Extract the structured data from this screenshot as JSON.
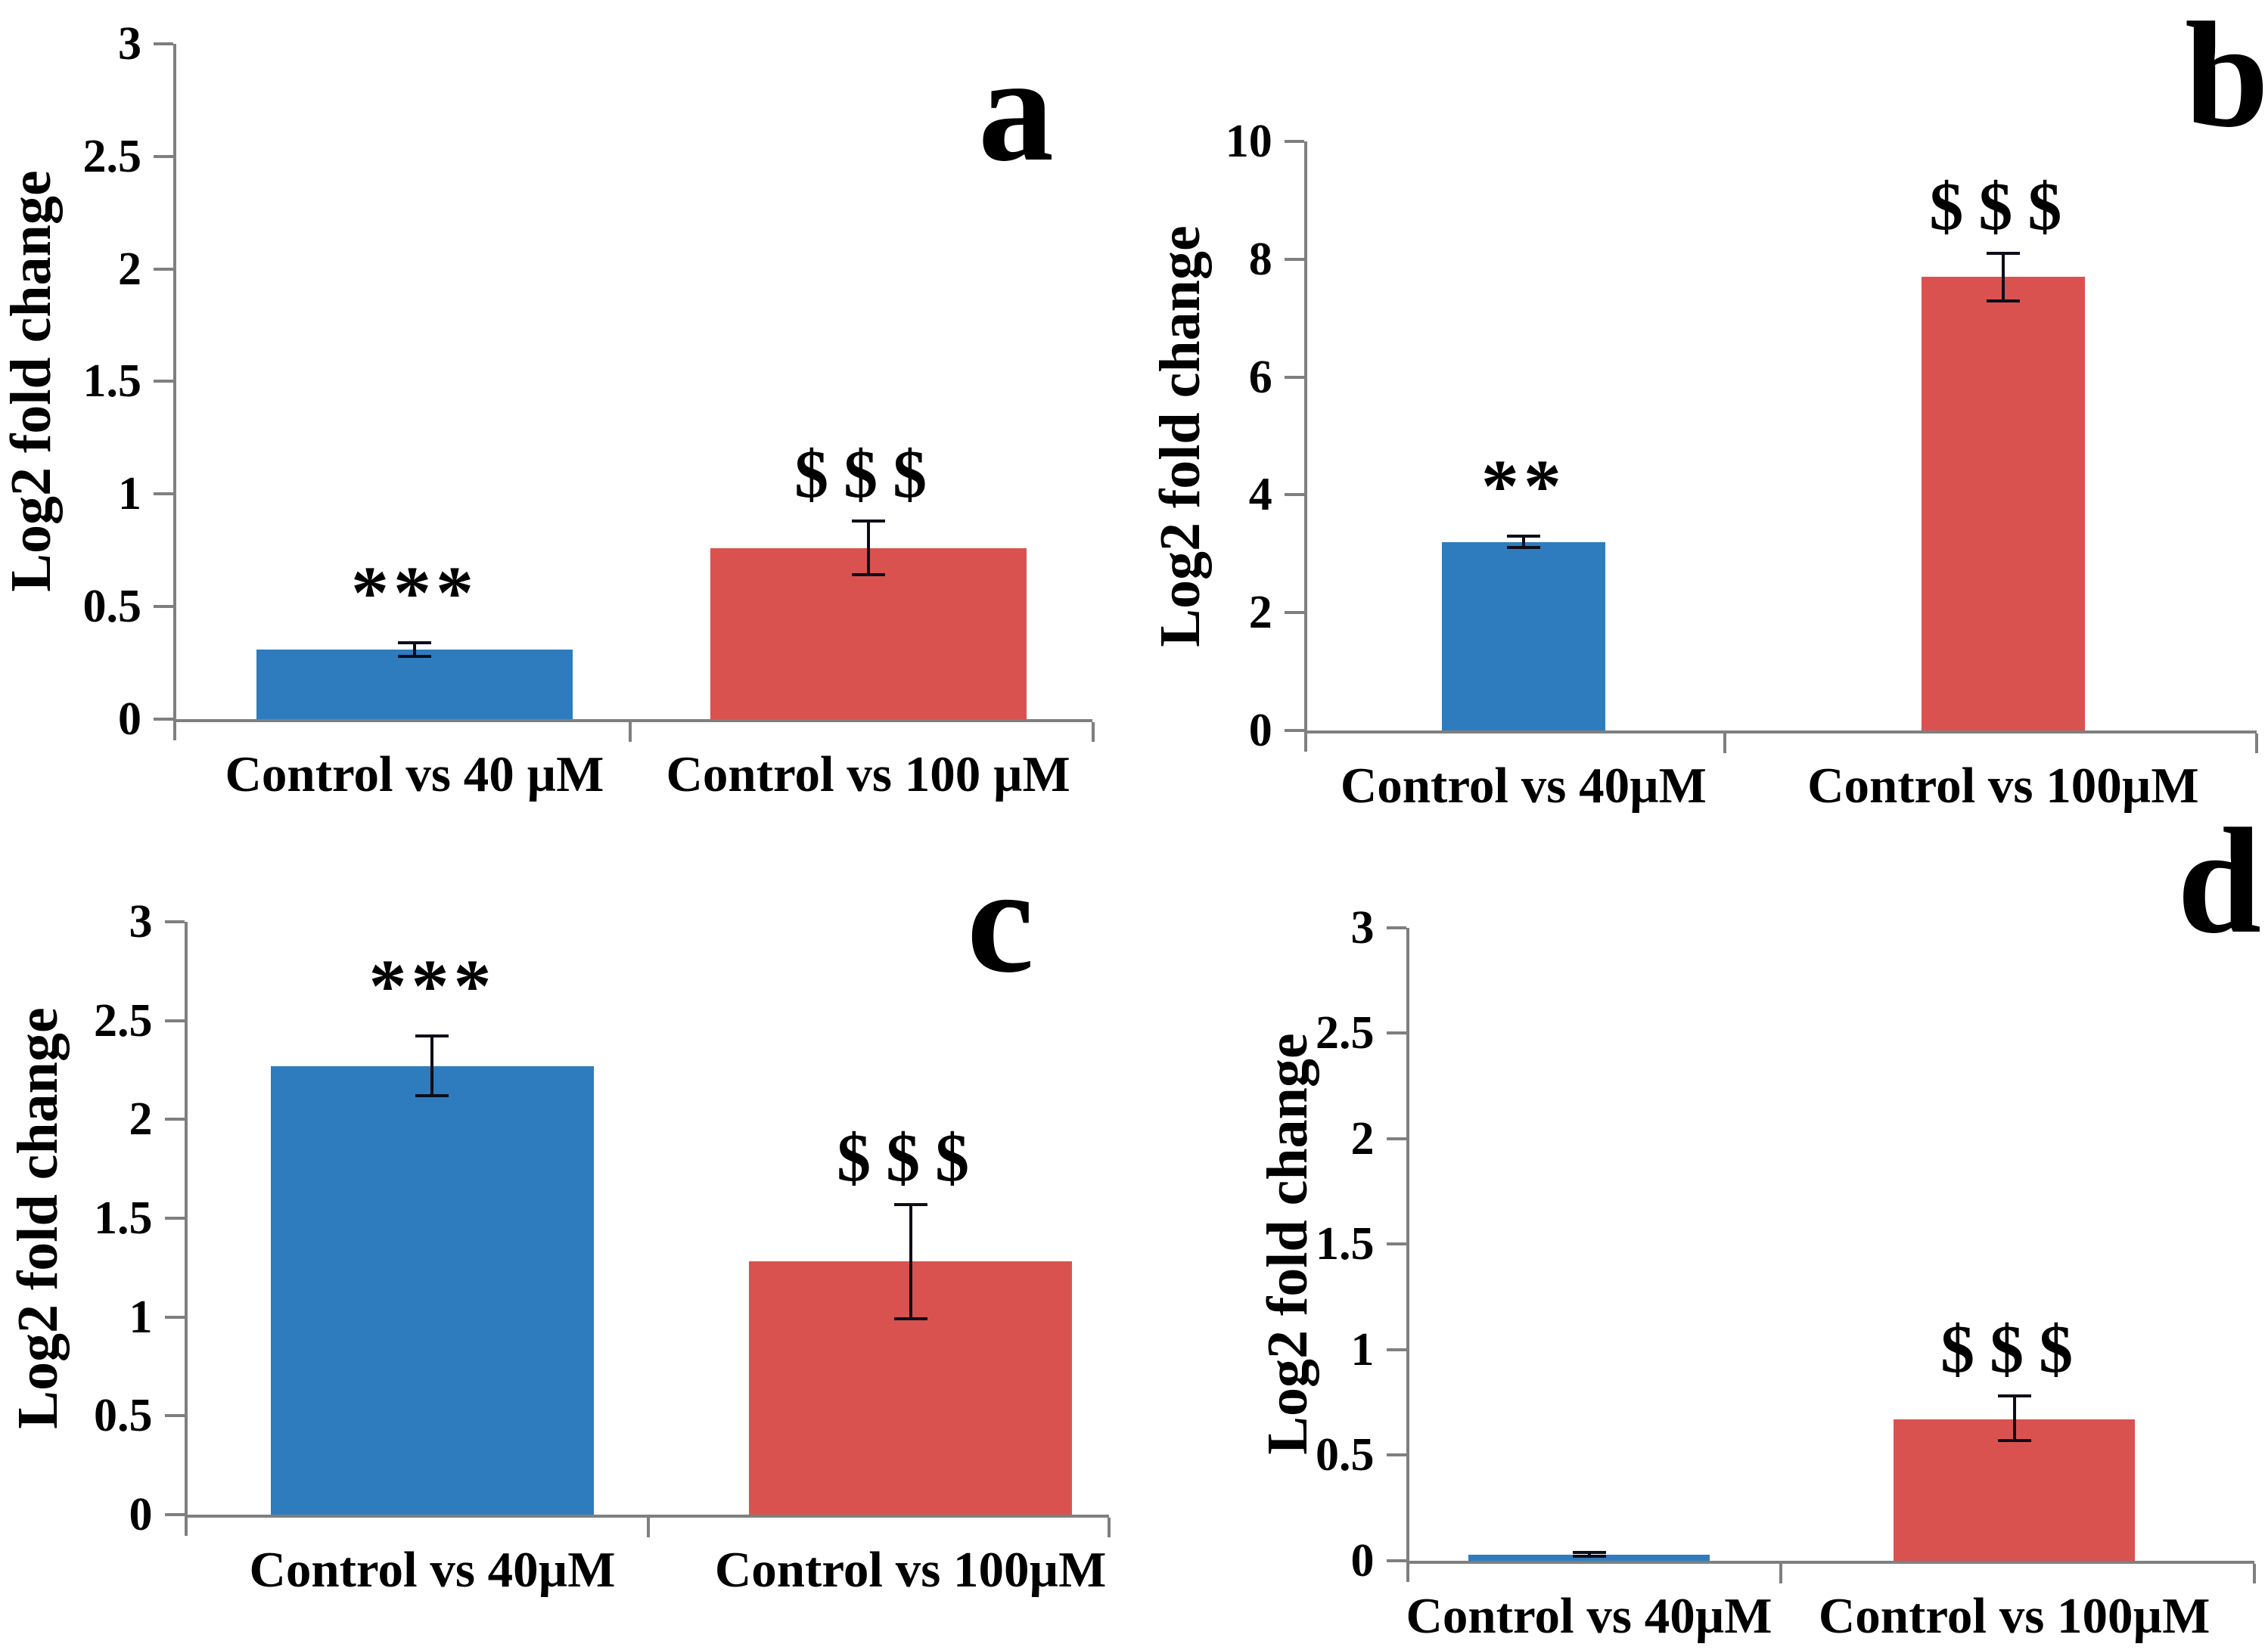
{
  "figure": {
    "background": "#FFFFFF",
    "axis_color": "#7F7F7F",
    "error_bar_color": "#0D0D1A",
    "text_color": "#000000",
    "bar_blue": "#2E7CBE",
    "bar_red": "#DA5250",
    "panel_letters": [
      "a",
      "b",
      "c",
      "d"
    ],
    "y_axis_label": "Log2 fold change"
  },
  "chart_data": [
    {
      "type": "bar",
      "panel_label": "a",
      "title": "",
      "xlabel": "",
      "ylabel": "Log2 fold change",
      "ylim": [
        0,
        3
      ],
      "yticks": [
        0,
        0.5,
        1,
        1.5,
        2,
        2.5,
        3
      ],
      "ytick_labels": [
        "0",
        "0.5",
        "1",
        "1.5",
        "2",
        "2.5",
        "3"
      ],
      "grid": false,
      "legend": null,
      "categories": [
        "Control vs 40 µM",
        "Control vs 100 µM"
      ],
      "values": [
        0.31,
        0.76
      ],
      "error_bars": [
        {
          "low": 0.28,
          "high": 0.34
        },
        {
          "low": 0.64,
          "high": 0.88
        }
      ],
      "annotations": [
        "***",
        "$$$"
      ],
      "bar_colors": [
        "#2E7CBE",
        "#DA5250"
      ]
    },
    {
      "type": "bar",
      "panel_label": "b",
      "title": "",
      "xlabel": "",
      "ylabel": "Log2 fold change",
      "ylim": [
        0,
        10
      ],
      "yticks": [
        0,
        2,
        4,
        6,
        8,
        10
      ],
      "ytick_labels": [
        "0",
        "2",
        "4",
        "6",
        "8",
        "10"
      ],
      "grid": false,
      "legend": null,
      "categories": [
        "Control vs 40µM",
        "Control vs 100µM"
      ],
      "values": [
        3.2,
        7.7
      ],
      "error_bars": [
        {
          "low": 3.1,
          "high": 3.3
        },
        {
          "low": 7.3,
          "high": 8.1
        }
      ],
      "annotations": [
        "**",
        "$$$"
      ],
      "bar_colors": [
        "#2E7CBE",
        "#DA5250"
      ]
    },
    {
      "type": "bar",
      "panel_label": "c",
      "title": "",
      "xlabel": "",
      "ylabel": "Log2 fold change",
      "ylim": [
        0,
        3
      ],
      "yticks": [
        0,
        0.5,
        1,
        1.5,
        2,
        2.5,
        3
      ],
      "ytick_labels": [
        "0",
        "0.5",
        "1",
        "1.5",
        "2",
        "2.5",
        "3"
      ],
      "grid": false,
      "legend": null,
      "categories": [
        "Control vs 40µM",
        "Control vs 100µM"
      ],
      "values": [
        2.27,
        1.28
      ],
      "error_bars": [
        {
          "low": 2.12,
          "high": 2.42
        },
        {
          "low": 0.99,
          "high": 1.57
        }
      ],
      "annotations": [
        "***",
        "$$$"
      ],
      "bar_colors": [
        "#2E7CBE",
        "#DA5250"
      ]
    },
    {
      "type": "bar",
      "panel_label": "d",
      "title": "",
      "xlabel": "",
      "ylabel": "Log2 fold change",
      "ylim": [
        0,
        3
      ],
      "yticks": [
        0,
        0.5,
        1,
        1.5,
        2,
        2.5,
        3
      ],
      "ytick_labels": [
        "0",
        "0.5",
        "1",
        "1.5",
        "2",
        "2.5",
        "3"
      ],
      "grid": false,
      "legend": null,
      "categories": [
        "Control vs 40µM",
        "Control vs 100µM"
      ],
      "values": [
        0.03,
        0.67
      ],
      "error_bars": [
        {
          "low": 0.02,
          "high": 0.04
        },
        {
          "low": 0.57,
          "high": 0.78
        }
      ],
      "annotations": [
        "",
        "$$$"
      ],
      "bar_colors": [
        "#2E7CBE",
        "#DA5250"
      ]
    }
  ]
}
